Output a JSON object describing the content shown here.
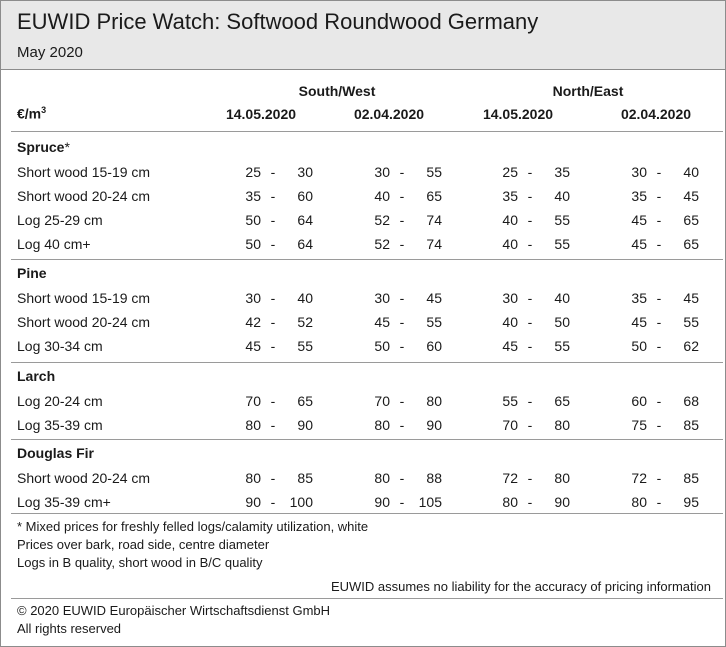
{
  "header": {
    "title": "EUWID Price Watch: Softwood Roundwood Germany",
    "subtitle": "May 2020"
  },
  "table": {
    "unit": "€/m",
    "unit_exp": "3",
    "regions": [
      "South/West",
      "North/East"
    ],
    "dates": [
      "14.05.2020",
      "02.04.2020",
      "14.05.2020",
      "02.04.2020"
    ],
    "sections": [
      {
        "name": "Spruce",
        "note": "*",
        "rows": [
          {
            "label": "Short wood 15-19 cm",
            "values": [
              [
                "25",
                "30"
              ],
              [
                "30",
                "55"
              ],
              [
                "25",
                "35"
              ],
              [
                "30",
                "40"
              ]
            ]
          },
          {
            "label": "Short wood 20-24 cm",
            "values": [
              [
                "35",
                "60"
              ],
              [
                "40",
                "65"
              ],
              [
                "35",
                "40"
              ],
              [
                "35",
                "45"
              ]
            ]
          },
          {
            "label": "Log 25-29 cm",
            "values": [
              [
                "50",
                "64"
              ],
              [
                "52",
                "74"
              ],
              [
                "40",
                "55"
              ],
              [
                "45",
                "65"
              ]
            ]
          },
          {
            "label": "Log 40 cm+",
            "values": [
              [
                "50",
                "64"
              ],
              [
                "52",
                "74"
              ],
              [
                "40",
                "55"
              ],
              [
                "45",
                "65"
              ]
            ]
          }
        ]
      },
      {
        "name": "Pine",
        "note": "",
        "rows": [
          {
            "label": "Short wood 15-19 cm",
            "values": [
              [
                "30",
                "40"
              ],
              [
                "30",
                "45"
              ],
              [
                "30",
                "40"
              ],
              [
                "35",
                "45"
              ]
            ]
          },
          {
            "label": "Short wood 20-24 cm",
            "values": [
              [
                "42",
                "52"
              ],
              [
                "45",
                "55"
              ],
              [
                "40",
                "50"
              ],
              [
                "45",
                "55"
              ]
            ]
          },
          {
            "label": "Log 30-34 cm",
            "values": [
              [
                "45",
                "55"
              ],
              [
                "50",
                "60"
              ],
              [
                "45",
                "55"
              ],
              [
                "50",
                "62"
              ]
            ]
          }
        ]
      },
      {
        "name": "Larch",
        "note": "",
        "rows": [
          {
            "label": "Log 20-24 cm",
            "values": [
              [
                "70",
                "65"
              ],
              [
                "70",
                "80"
              ],
              [
                "55",
                "65"
              ],
              [
                "60",
                "68"
              ]
            ]
          },
          {
            "label": "Log 35-39 cm",
            "values": [
              [
                "80",
                "90"
              ],
              [
                "80",
                "90"
              ],
              [
                "70",
                "80"
              ],
              [
                "75",
                "85"
              ]
            ]
          }
        ]
      },
      {
        "name": "Douglas Fir",
        "note": "",
        "rows": [
          {
            "label": "Short wood 20-24 cm",
            "values": [
              [
                "80",
                "85"
              ],
              [
                "80",
                "88"
              ],
              [
                "72",
                "80"
              ],
              [
                "72",
                "85"
              ]
            ]
          },
          {
            "label": "Log 35-39 cm+",
            "values": [
              [
                "90",
                "100"
              ],
              [
                "90",
                "105"
              ],
              [
                "80",
                "90"
              ],
              [
                "80",
                "95"
              ]
            ]
          }
        ]
      }
    ]
  },
  "footnotes": [
    "* Mixed prices for freshly felled logs/calamity utilization, white",
    "Prices over bark, road side, centre diameter",
    "Logs in B quality, short wood in B/C quality"
  ],
  "disclaimer": "EUWID assumes no liability for the accuracy of pricing information",
  "copyright": [
    "© 2020 EUWID Europäischer Wirtschaftsdienst GmbH",
    "All rights reserved"
  ]
}
